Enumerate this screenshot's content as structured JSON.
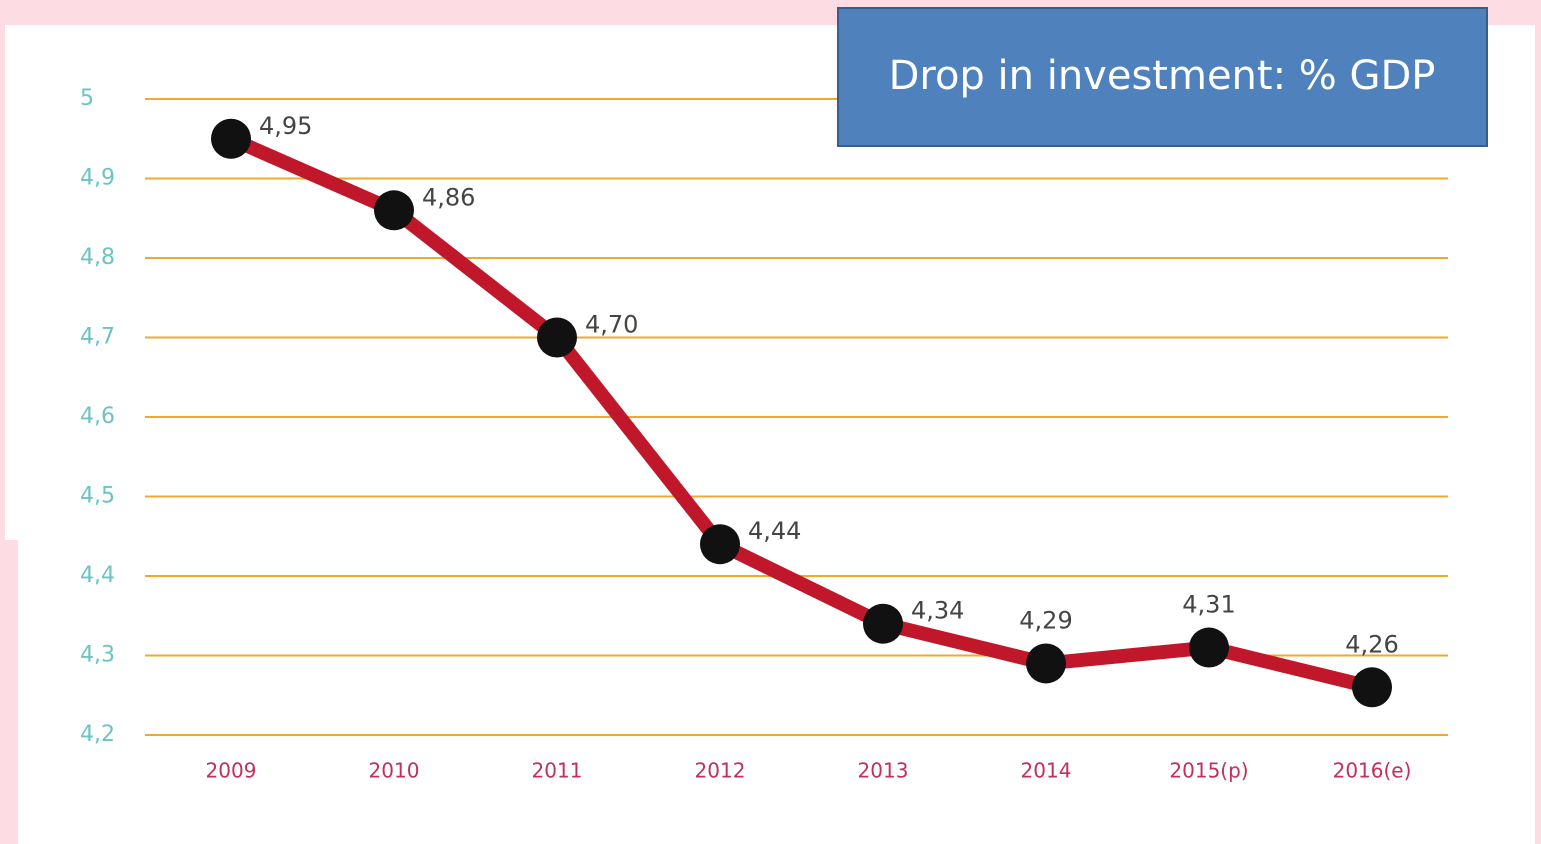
{
  "chart_data": {
    "type": "line",
    "title": "Drop in investment: % GDP",
    "categories": [
      "2009",
      "2010",
      "2011",
      "2012",
      "2013",
      "2014",
      "2015(p)",
      "2016(e)"
    ],
    "values": [
      4.95,
      4.86,
      4.7,
      4.44,
      4.34,
      4.29,
      4.31,
      4.26
    ],
    "value_labels": [
      "4,95",
      "4,86",
      "4,70",
      "4,44",
      "4,34",
      "4,29",
      "4,31",
      "4,26"
    ],
    "color": "#c0182a",
    "marker_color": "#111111",
    "ylim": [
      4.2,
      5
    ],
    "yticks": [
      {
        "value": 4.2,
        "label": "4,2"
      },
      {
        "value": 4.3,
        "label": "4,3"
      },
      {
        "value": 4.4,
        "label": "4,4"
      },
      {
        "value": 4.5,
        "label": "4,5"
      },
      {
        "value": 4.6,
        "label": "4,6"
      },
      {
        "value": 4.7,
        "label": "4,7"
      },
      {
        "value": 4.8,
        "label": "4,8"
      },
      {
        "value": 4.9,
        "label": "4,9"
      },
      5
    ],
    "grid": true,
    "grid_color": "#f0a830"
  }
}
